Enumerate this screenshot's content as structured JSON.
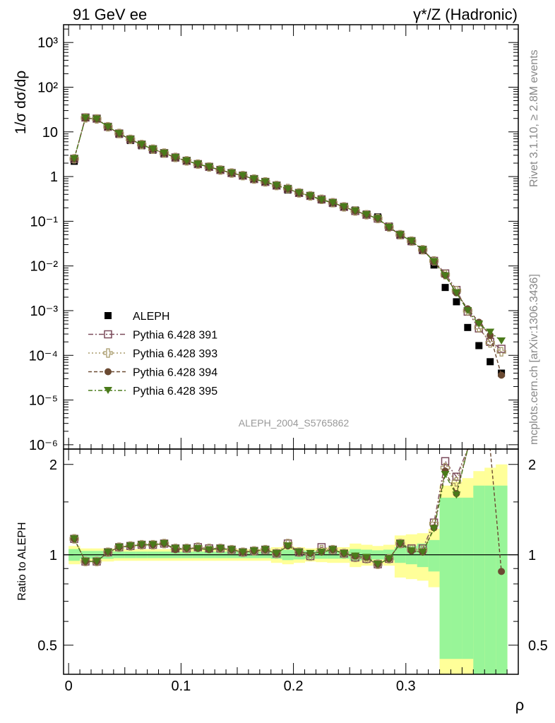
{
  "header": {
    "energy_label": "91 GeV ee",
    "process_label": "γ*/Z (Hadronic)"
  },
  "side_labels": {
    "rivet": "Rivet 3.1.10, ≥ 2.8M events",
    "site": "mcplots.cern.ch [arXiv:1306.3436]"
  },
  "watermark": "ALEPH_2004_S5765862",
  "colors": {
    "aleph": "#000000",
    "p391": "#7a4a5a",
    "p393": "#a89a6a",
    "p394": "#6b4a32",
    "p395": "#4a7a1a",
    "band_inner": "#98f598",
    "band_outer": "#ffff99"
  },
  "chart_data": [
    {
      "type": "scatter",
      "panel": "main",
      "ylabel": "1/σ  dσ/dρ",
      "xlabel": "ρ",
      "log_y": true,
      "xlim": [
        -0.0045,
        0.4
      ],
      "ylim": [
        8e-07,
        2500
      ],
      "y_ticks": [
        "10⁻⁶",
        "10⁻⁵",
        "10⁻⁴",
        "10⁻³",
        "10⁻²",
        "10⁻¹",
        "1",
        "10",
        "10²",
        "10³"
      ],
      "x": [
        0.005,
        0.015,
        0.025,
        0.035,
        0.045,
        0.055,
        0.065,
        0.075,
        0.085,
        0.095,
        0.105,
        0.115,
        0.125,
        0.135,
        0.145,
        0.155,
        0.165,
        0.175,
        0.185,
        0.195,
        0.205,
        0.215,
        0.225,
        0.235,
        0.245,
        0.255,
        0.265,
        0.275,
        0.285,
        0.295,
        0.305,
        0.315,
        0.325,
        0.335,
        0.345,
        0.355,
        0.365,
        0.375,
        0.385
      ],
      "series": [
        {
          "name": "ALEPH",
          "marker": "filled-square",
          "values": [
            2.2,
            21,
            20,
            12.8,
            8.8,
            6.4,
            4.9,
            3.9,
            3.2,
            2.6,
            2.2,
            1.86,
            1.62,
            1.38,
            1.19,
            1.04,
            0.87,
            0.75,
            0.63,
            0.5,
            0.43,
            0.37,
            0.3,
            0.25,
            0.21,
            0.178,
            0.145,
            0.125,
            0.078,
            0.048,
            0.035,
            0.022,
            0.0105,
            0.0033,
            0.00158,
            0.00042,
            0.000165,
            7.2e-05,
            4e-05
          ]
        },
        {
          "name": "Pythia 6.428 391",
          "marker": "open-square",
          "values": [
            2.5,
            21,
            19.8,
            13,
            9.2,
            6.8,
            5.2,
            4.1,
            3.35,
            2.68,
            2.25,
            1.9,
            1.65,
            1.41,
            1.2,
            1.05,
            0.88,
            0.76,
            0.63,
            0.53,
            0.43,
            0.37,
            0.31,
            0.26,
            0.21,
            0.17,
            0.14,
            0.115,
            0.075,
            0.05,
            0.036,
            0.023,
            0.013,
            0.0068,
            0.0029,
            0.00095,
            0.0004,
            0.0002,
            0.00014
          ]
        },
        {
          "name": "Pythia 6.428 393",
          "marker": "open-cross",
          "values": [
            2.5,
            20.6,
            19.5,
            13,
            9.2,
            6.8,
            5.2,
            4.1,
            3.35,
            2.68,
            2.25,
            1.9,
            1.64,
            1.4,
            1.2,
            1.05,
            0.88,
            0.76,
            0.63,
            0.54,
            0.43,
            0.37,
            0.31,
            0.26,
            0.21,
            0.17,
            0.14,
            0.115,
            0.074,
            0.05,
            0.036,
            0.023,
            0.013,
            0.0064,
            0.0028,
            0.001,
            0.00042,
            0.00019,
            0.00012
          ]
        },
        {
          "name": "Pythia 6.428 394",
          "marker": "filled-circle",
          "values": [
            2.5,
            20.4,
            19.4,
            13,
            9.2,
            6.8,
            5.2,
            4.1,
            3.35,
            2.67,
            2.25,
            1.9,
            1.64,
            1.4,
            1.2,
            1.05,
            0.88,
            0.76,
            0.63,
            0.53,
            0.43,
            0.37,
            0.3,
            0.26,
            0.21,
            0.17,
            0.14,
            0.115,
            0.073,
            0.05,
            0.036,
            0.023,
            0.0125,
            0.0062,
            0.0025,
            0.0011,
            0.00055,
            0.00028,
            3.6e-05
          ]
        },
        {
          "name": "Pythia 6.428 395",
          "marker": "filled-triangle-down",
          "values": [
            2.5,
            20.5,
            19.4,
            13,
            9.2,
            6.8,
            5.2,
            4.1,
            3.35,
            2.67,
            2.25,
            1.9,
            1.64,
            1.4,
            1.2,
            1.05,
            0.88,
            0.76,
            0.63,
            0.53,
            0.43,
            0.37,
            0.3,
            0.26,
            0.21,
            0.17,
            0.14,
            0.115,
            0.073,
            0.05,
            0.036,
            0.023,
            0.0125,
            0.006,
            0.0025,
            0.001,
            0.0005,
            0.00033,
            0.00021
          ]
        }
      ]
    },
    {
      "type": "scatter",
      "panel": "ratio",
      "ylabel": "Ratio to ALEPH",
      "xlabel": "ρ",
      "xlim": [
        -0.0045,
        0.4
      ],
      "ylim": [
        0.4,
        2.25
      ],
      "y_ticks": [
        "0.5",
        "1",
        "2"
      ],
      "x_ticks": [
        "0",
        "0.1",
        "0.2",
        "0.3"
      ],
      "reference_line": 1,
      "bands": {
        "inner_half": [
          0.045,
          0.03,
          0.03,
          0.03,
          0.025,
          0.025,
          0.025,
          0.025,
          0.025,
          0.025,
          0.025,
          0.025,
          0.025,
          0.025,
          0.025,
          0.025,
          0.025,
          0.025,
          0.03,
          0.04,
          0.035,
          0.03,
          0.03,
          0.03,
          0.03,
          0.045,
          0.04,
          0.035,
          0.04,
          0.06,
          0.07,
          0.09,
          0.12,
          0.55,
          0.55,
          0.55,
          0.7,
          0.7,
          0.7
        ],
        "outer_half": [
          0.07,
          0.05,
          0.05,
          0.05,
          0.045,
          0.045,
          0.045,
          0.045,
          0.045,
          0.045,
          0.045,
          0.045,
          0.045,
          0.045,
          0.045,
          0.045,
          0.045,
          0.045,
          0.06,
          0.07,
          0.06,
          0.05,
          0.055,
          0.06,
          0.06,
          0.09,
          0.08,
          0.07,
          0.08,
          0.16,
          0.17,
          0.18,
          0.22,
          0.7,
          0.75,
          0.8,
          0.9,
          0.95,
          1.0
        ]
      },
      "series": [
        {
          "name": "Pythia 6.428 391",
          "values": [
            1.13,
            0.95,
            0.95,
            1.02,
            1.06,
            1.07,
            1.08,
            1.08,
            1.09,
            1.05,
            1.05,
            1.06,
            1.05,
            1.05,
            1.04,
            1.02,
            1.03,
            1.04,
            1.01,
            1.09,
            1.02,
            0.99,
            1.06,
            1.04,
            1.01,
            0.98,
            0.97,
            0.93,
            0.97,
            1.09,
            1.05,
            1.05,
            1.28,
            2.05,
            1.82,
            2.3,
            2.3,
            2.3,
            2.3
          ]
        },
        {
          "name": "Pythia 6.428 393",
          "values": [
            1.13,
            0.95,
            0.95,
            1.02,
            1.06,
            1.07,
            1.08,
            1.08,
            1.09,
            1.05,
            1.05,
            1.06,
            1.05,
            1.05,
            1.04,
            1.02,
            1.03,
            1.04,
            1.01,
            1.09,
            1.02,
            0.99,
            1.04,
            1.04,
            1.01,
            0.98,
            0.97,
            0.93,
            0.97,
            1.09,
            1.04,
            1.04,
            1.27,
            1.95,
            1.75,
            2.3,
            2.3,
            2.3,
            2.3
          ]
        },
        {
          "name": "Pythia 6.428 394",
          "values": [
            1.13,
            0.95,
            0.95,
            1.02,
            1.06,
            1.07,
            1.08,
            1.08,
            1.09,
            1.04,
            1.05,
            1.05,
            1.04,
            1.05,
            1.04,
            1.02,
            1.03,
            1.04,
            1.01,
            1.07,
            1.02,
            1.01,
            1.02,
            1.04,
            1.01,
            0.99,
            0.98,
            0.93,
            0.97,
            1.09,
            1.03,
            1.02,
            1.23,
            1.9,
            1.6,
            2.3,
            2.3,
            2.3,
            0.88
          ]
        },
        {
          "name": "Pythia 6.428 395",
          "values": [
            1.13,
            0.95,
            0.95,
            1.02,
            1.06,
            1.07,
            1.08,
            1.08,
            1.09,
            1.05,
            1.05,
            1.05,
            1.04,
            1.05,
            1.04,
            1.02,
            1.03,
            1.04,
            1.01,
            1.07,
            1.02,
            1.01,
            1.02,
            1.04,
            1.01,
            0.99,
            0.98,
            0.93,
            0.97,
            1.09,
            1.03,
            1.02,
            1.22,
            1.85,
            1.58,
            2.3,
            2.3,
            2.3,
            2.3
          ]
        }
      ]
    }
  ]
}
